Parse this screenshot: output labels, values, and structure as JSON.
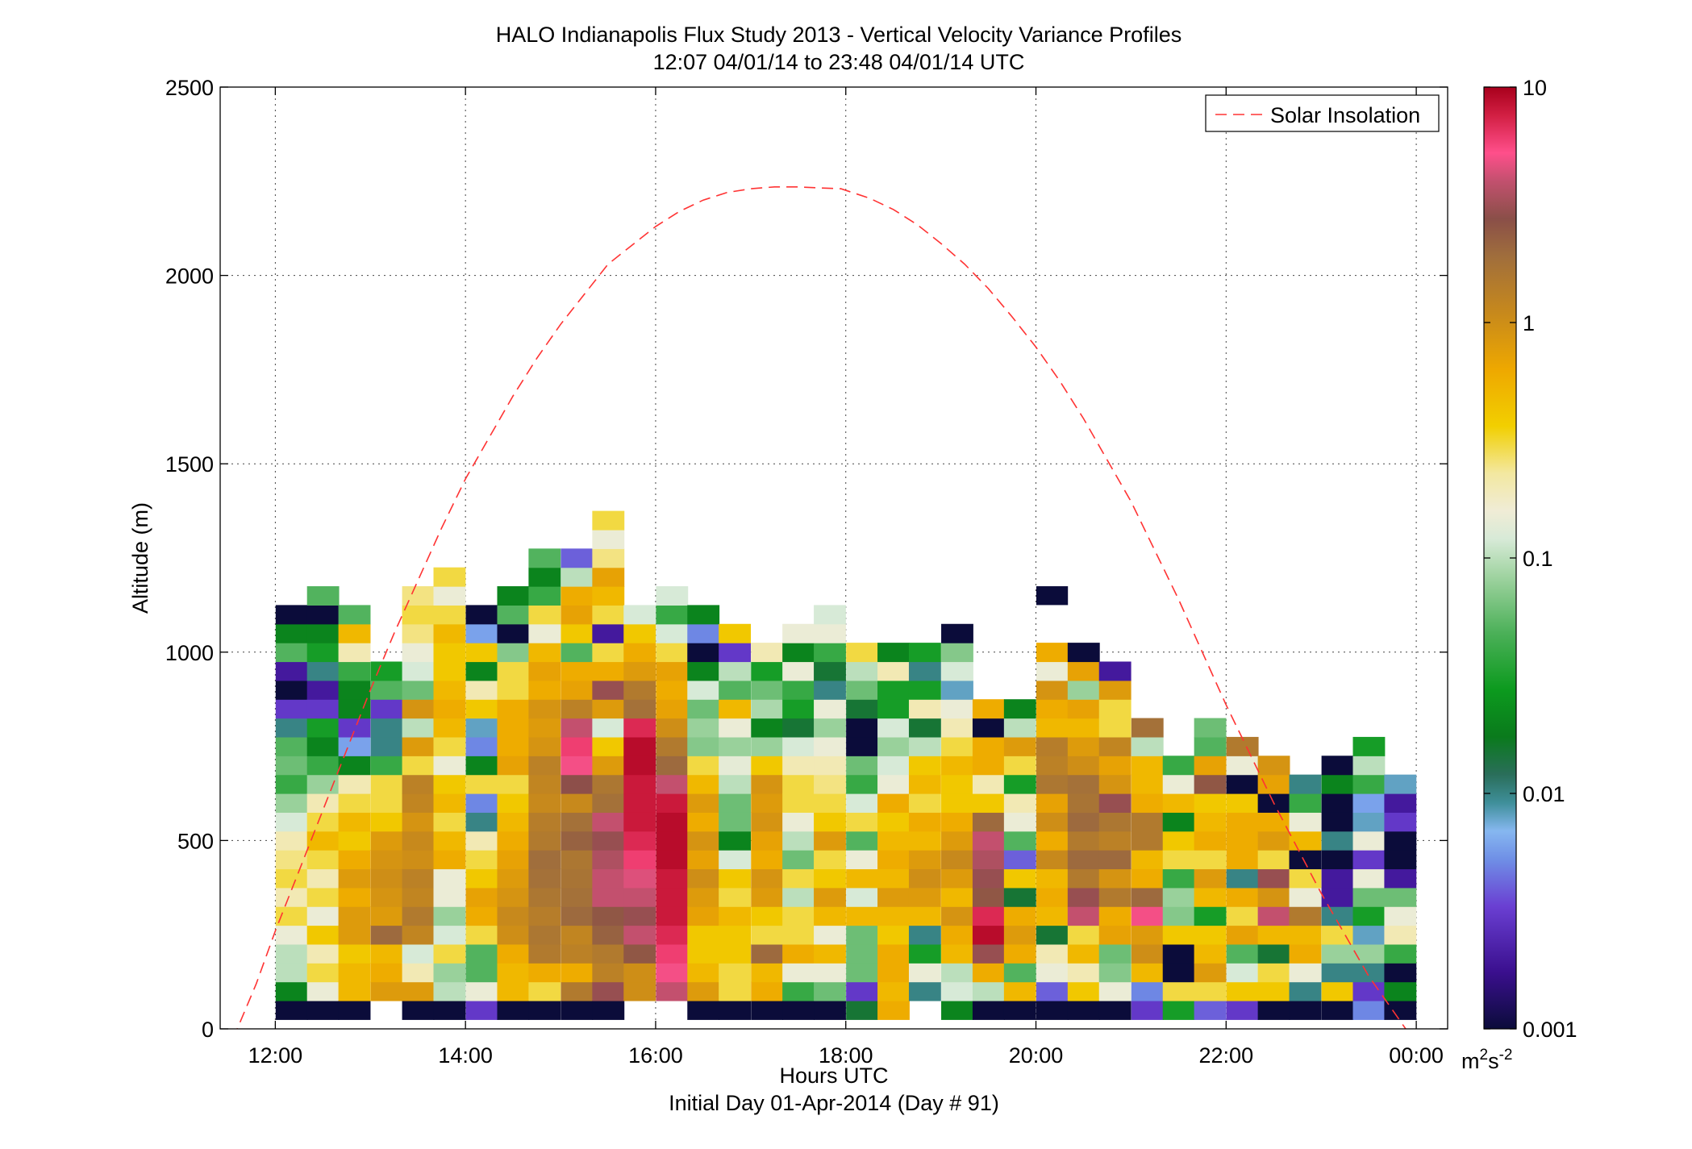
{
  "chart_data": {
    "type": "heatmap",
    "title": "HALO Indianapolis Flux Study 2013 - Vertical Velocity Variance Profiles",
    "subtitle": "12:07 04/01/14 to 23:48 04/01/14  UTC",
    "xlabel": "Hours UTC",
    "xlabel2": "Initial Day 01-Apr-2014 (Day # 91)",
    "ylabel": "Altitude (m)",
    "xlim": [
      11.42,
      24.33
    ],
    "ylim": [
      0,
      2500
    ],
    "x_ticks": [
      12,
      14,
      16,
      18,
      20,
      22,
      24
    ],
    "x_tick_labels": [
      "12:00",
      "14:00",
      "16:00",
      "18:00",
      "20:00",
      "22:00",
      "00:00"
    ],
    "y_ticks": [
      0,
      500,
      1000,
      1500,
      2000,
      2500
    ],
    "y_tick_labels": [
      "0",
      "500",
      "1000",
      "1500",
      "2000",
      "2500"
    ],
    "grid": true,
    "legend": {
      "placement": "top-right",
      "entries": [
        "Solar Insolation"
      ]
    },
    "line_color": "#ff3333",
    "colorbar": {
      "scale": "log",
      "range": [
        0.001,
        10
      ],
      "ticks": [
        0.001,
        0.01,
        0.1,
        1,
        10
      ],
      "tick_labels": [
        "0.001",
        "0.01",
        "0.1",
        "1",
        "10"
      ],
      "unit_base": "m",
      "unit_sup1": "2",
      "unit_mid": "s",
      "unit_sup2": "-2",
      "stops": [
        {
          "v": 0.0,
          "c": "#0b0c3a"
        },
        {
          "v": 0.06,
          "c": "#3a0f8e"
        },
        {
          "v": 0.13,
          "c": "#6a3fd2"
        },
        {
          "v": 0.18,
          "c": "#6f8fe6"
        },
        {
          "v": 0.21,
          "c": "#86b7f0"
        },
        {
          "v": 0.24,
          "c": "#3f8f9a"
        },
        {
          "v": 0.27,
          "c": "#2a6e5a"
        },
        {
          "v": 0.31,
          "c": "#0a7a1c"
        },
        {
          "v": 0.36,
          "c": "#0c9a1e"
        },
        {
          "v": 0.42,
          "c": "#4bb058"
        },
        {
          "v": 0.48,
          "c": "#9fd3a0"
        },
        {
          "v": 0.52,
          "c": "#d7ead7"
        },
        {
          "v": 0.55,
          "c": "#f0ecd6"
        },
        {
          "v": 0.59,
          "c": "#f3e8a0"
        },
        {
          "v": 0.64,
          "c": "#f2cf00"
        },
        {
          "v": 0.7,
          "c": "#eea800"
        },
        {
          "v": 0.76,
          "c": "#c7891c"
        },
        {
          "v": 0.82,
          "c": "#a06e3c"
        },
        {
          "v": 0.86,
          "c": "#8a4f48"
        },
        {
          "v": 0.9,
          "c": "#c2506e"
        },
        {
          "v": 0.93,
          "c": "#ff4f8b"
        },
        {
          "v": 0.97,
          "c": "#d21f43"
        },
        {
          "v": 1.0,
          "c": "#a8001c"
        }
      ]
    },
    "cell_height_m": 50,
    "cell_width_h": 0.333,
    "columns": [
      {
        "x": 12.17,
        "y0": 50,
        "v": [
          0.001,
          0.02,
          0.1,
          0.1,
          0.15,
          0.3,
          0.2,
          0.3,
          0.25,
          0.2,
          0.12,
          0.08,
          0.04,
          0.06,
          0.05,
          0.01,
          0.003,
          0.001,
          0.002,
          0.05,
          0.02,
          0.001
        ]
      },
      {
        "x": 12.5,
        "y0": 50,
        "v": [
          0.001,
          0.15,
          0.3,
          0.2,
          0.4,
          0.15,
          0.3,
          0.2,
          0.3,
          0.5,
          0.3,
          0.2,
          0.08,
          0.04,
          0.02,
          0.03,
          0.003,
          0.002,
          0.01,
          0.03,
          0.02,
          0.001,
          0.05
        ]
      },
      {
        "x": 12.83,
        "y0": 50,
        "v": [
          0.001,
          0.5,
          0.5,
          0.4,
          0.8,
          0.8,
          0.6,
          0.8,
          0.6,
          0.4,
          0.5,
          0.3,
          0.2,
          0.02,
          0.006,
          0.003,
          0.02,
          0.02,
          0.04,
          0.2,
          0.5,
          0.05
        ]
      },
      {
        "x": 13.17,
        "y0": 100,
        "v": [
          0.8,
          0.6,
          0.5,
          2.0,
          0.8,
          0.9,
          1.0,
          0.9,
          0.8,
          0.4,
          0.3,
          0.3,
          0.04,
          0.01,
          0.01,
          0.003,
          0.05,
          0.03
        ]
      },
      {
        "x": 13.5,
        "y0": 50,
        "v": [
          0.001,
          0.8,
          0.2,
          0.12,
          1.2,
          1.5,
          1.2,
          1.3,
          1.0,
          1.1,
          0.9,
          1.2,
          1.3,
          0.3,
          0.8,
          0.1,
          0.9,
          0.06,
          0.12,
          0.15,
          0.25,
          0.3,
          0.25
        ]
      },
      {
        "x": 13.83,
        "y0": 50,
        "v": [
          0.001,
          0.1,
          0.08,
          0.3,
          0.12,
          0.08,
          0.15,
          0.15,
          0.6,
          0.5,
          0.3,
          0.5,
          0.4,
          0.15,
          0.3,
          0.5,
          0.6,
          0.5,
          0.4,
          0.4,
          0.5,
          0.3,
          0.15,
          0.3
        ]
      },
      {
        "x": 14.17,
        "y0": 50,
        "v": [
          0.003,
          0.15,
          0.05,
          0.05,
          0.3,
          0.6,
          0.7,
          0.4,
          0.3,
          0.2,
          0.01,
          0.005,
          0.3,
          0.02,
          0.005,
          0.008,
          0.4,
          0.2,
          0.02,
          0.4,
          0.006,
          0.001
        ]
      },
      {
        "x": 14.5,
        "y0": 50,
        "v": [
          0.001,
          0.5,
          0.5,
          0.6,
          1.0,
          1.1,
          0.9,
          0.8,
          0.7,
          0.6,
          0.5,
          0.4,
          0.3,
          0.7,
          0.6,
          0.6,
          0.6,
          0.3,
          0.3,
          0.07,
          0.001,
          0.05,
          0.02
        ]
      },
      {
        "x": 14.83,
        "y0": 50,
        "v": [
          0.001,
          0.3,
          0.6,
          1.5,
          1.6,
          1.4,
          1.6,
          1.8,
          1.9,
          1.5,
          1.4,
          1.1,
          1.2,
          1.3,
          0.9,
          0.8,
          0.9,
          0.6,
          0.7,
          0.5,
          0.15,
          0.3,
          0.04,
          0.02,
          0.05
        ]
      },
      {
        "x": 15.17,
        "y0": 50,
        "v": [
          0.001,
          1.5,
          0.6,
          1.3,
          1.2,
          2.0,
          1.8,
          1.7,
          1.6,
          2.2,
          1.8,
          1.1,
          2.8,
          5.0,
          6.0,
          4.0,
          1.3,
          0.7,
          0.6,
          0.05,
          0.4,
          0.7,
          0.6,
          0.1,
          0.004
        ]
      },
      {
        "x": 15.5,
        "y0": 50,
        "v": [
          0.001,
          3.0,
          1.3,
          1.5,
          2.2,
          2.5,
          4.0,
          4.0,
          3.5,
          3.0,
          4.0,
          1.8,
          1.6,
          0.8,
          0.4,
          0.12,
          0.8,
          3.0,
          0.6,
          0.3,
          0.002,
          0.3,
          0.5,
          0.7,
          0.25,
          0.15,
          0.3
        ]
      },
      {
        "x": 15.83,
        "y0": 100,
        "v": [
          1.0,
          1.0,
          2.5,
          4.0,
          3.0,
          4.0,
          4.5,
          6.0,
          7.0,
          8.0,
          8.0,
          8.0,
          9.0,
          9.0,
          7.0,
          1.8,
          1.5,
          0.8,
          0.6,
          0.4,
          0.12
        ]
      },
      {
        "x": 16.17,
        "y0": 100,
        "v": [
          4.0,
          5.0,
          6.0,
          7.0,
          8.0,
          8.0,
          8.0,
          9.0,
          9.0,
          9.0,
          8.0,
          4.0,
          2.0,
          1.5,
          1.0,
          0.7,
          0.6,
          0.7,
          0.3,
          0.12,
          0.04,
          0.12
        ]
      },
      {
        "x": 16.5,
        "y0": 50,
        "v": [
          0.001,
          0.8,
          0.5,
          0.4,
          0.4,
          0.7,
          0.8,
          1.0,
          0.7,
          0.9,
          0.6,
          0.8,
          0.5,
          0.3,
          0.07,
          0.08,
          0.06,
          0.12,
          0.02,
          0.001,
          0.005,
          0.02
        ]
      },
      {
        "x": 16.83,
        "y0": 50,
        "v": [
          0.001,
          0.3,
          0.3,
          0.4,
          0.4,
          0.5,
          0.3,
          0.4,
          0.12,
          0.02,
          0.06,
          0.06,
          0.1,
          0.14,
          0.08,
          0.15,
          0.5,
          0.05,
          0.1,
          0.003,
          0.4
        ]
      },
      {
        "x": 17.17,
        "y0": 50,
        "v": [
          0.001,
          0.6,
          0.5,
          2.0,
          0.3,
          0.4,
          0.8,
          0.9,
          0.6,
          0.7,
          0.9,
          0.8,
          0.9,
          0.4,
          0.08,
          0.02,
          0.09,
          0.06,
          0.03,
          0.2
        ]
      },
      {
        "x": 17.5,
        "y0": 50,
        "v": [
          0.001,
          0.04,
          0.15,
          0.6,
          0.3,
          0.3,
          0.1,
          0.3,
          0.06,
          0.1,
          0.15,
          0.3,
          0.3,
          0.2,
          0.12,
          0.015,
          0.03,
          0.04,
          0.15,
          0.02,
          0.15
        ]
      },
      {
        "x": 17.83,
        "y0": 50,
        "v": [
          0.001,
          0.06,
          0.15,
          0.5,
          0.15,
          0.5,
          0.8,
          0.4,
          0.3,
          0.8,
          0.4,
          0.3,
          0.25,
          0.2,
          0.15,
          0.08,
          0.15,
          0.01,
          0.015,
          0.04,
          0.15,
          0.12
        ]
      },
      {
        "x": 18.17,
        "y0": 50,
        "v": [
          0.015,
          0.003,
          0.06,
          0.06,
          0.06,
          0.5,
          0.12,
          0.5,
          0.15,
          0.05,
          0.3,
          0.12,
          0.04,
          0.06,
          0.001,
          0.001,
          0.015,
          0.06,
          0.1,
          0.3
        ]
      },
      {
        "x": 18.5,
        "y0": 50,
        "v": [
          0.6,
          0.5,
          0.6,
          0.6,
          0.4,
          0.5,
          0.8,
          0.5,
          0.6,
          0.5,
          0.4,
          0.6,
          0.15,
          0.12,
          0.08,
          0.12,
          0.03,
          0.03,
          0.2,
          0.02
        ]
      },
      {
        "x": 18.83,
        "y0": 100,
        "v": [
          0.01,
          0.15,
          0.03,
          0.01,
          0.5,
          0.8,
          1.0,
          0.8,
          0.5,
          0.6,
          0.3,
          0.5,
          0.4,
          0.1,
          0.015,
          0.2,
          0.03,
          0.01,
          0.03
        ]
      },
      {
        "x": 19.17,
        "y0": 50,
        "v": [
          0.02,
          0.12,
          0.1,
          0.5,
          0.6,
          0.9,
          0.5,
          0.8,
          1.1,
          0.8,
          0.6,
          0.4,
          0.4,
          0.5,
          0.3,
          0.2,
          0.15,
          0.008,
          0.12,
          0.07,
          0.001
        ]
      },
      {
        "x": 19.5,
        "y0": 50,
        "v": [
          0.001,
          0.1,
          0.6,
          3.0,
          9.0,
          7.0,
          2.5,
          3.0,
          3.5,
          4.0,
          2.0,
          0.4,
          0.2,
          0.6,
          0.6,
          0.001,
          0.6
        ]
      },
      {
        "x": 19.83,
        "y0": 50,
        "v": [
          0.001,
          0.5,
          0.05,
          0.6,
          0.8,
          0.6,
          0.015,
          0.4,
          0.004,
          0.05,
          0.15,
          0.2,
          0.03,
          0.3,
          0.8,
          0.1,
          0.02
        ]
      },
      {
        "x": 20.17,
        "y0": 50,
        "v": [
          0.001,
          0.004,
          0.15,
          0.2,
          0.015,
          0.5,
          0.6,
          0.5,
          1.1,
          0.6,
          1.0,
          0.7,
          1.6,
          1.3,
          1.4,
          0.5,
          0.6,
          0.9,
          0.15,
          0.6
        ]
      },
      {
        "x": 20.5,
        "y0": 50,
        "v": [
          0.001,
          0.4,
          0.2,
          0.5,
          0.3,
          4.0,
          3.0,
          1.5,
          2.0,
          1.5,
          2.0,
          1.7,
          1.8,
          1.0,
          0.8,
          0.5,
          0.7,
          0.08,
          0.7,
          0.001
        ]
      },
      {
        "x": 20.83,
        "y0": 50,
        "v": [
          0.001,
          0.15,
          0.07,
          0.06,
          0.7,
          0.6,
          1.5,
          0.9,
          2.0,
          1.3,
          1.6,
          3.0,
          0.9,
          0.7,
          1.2,
          0.3,
          0.3,
          0.8,
          0.002
        ]
      },
      {
        "x": 21.17,
        "y0": 50,
        "v": [
          0.003,
          0.005,
          0.5,
          1.0,
          0.8,
          5.0,
          2.0,
          0.6,
          0.5,
          1.5,
          1.5,
          0.6,
          0.5,
          0.5,
          0.1,
          1.8
        ]
      },
      {
        "x": 21.5,
        "y0": 50,
        "v": [
          0.03,
          0.3,
          0.001,
          0.001,
          0.4,
          0.07,
          0.08,
          0.04,
          0.3,
          0.4,
          0.02,
          0.5,
          0.15,
          0.04
        ]
      },
      {
        "x": 21.83,
        "y0": 50,
        "v": [
          0.004,
          0.3,
          0.8,
          0.5,
          0.4,
          0.03,
          0.5,
          0.8,
          0.3,
          0.6,
          0.5,
          0.4,
          2.5,
          0.7,
          0.05,
          0.06
        ]
      },
      {
        "x": 22.17,
        "y0": 50,
        "v": [
          0.003,
          0.4,
          0.12,
          0.05,
          0.7,
          0.3,
          0.6,
          0.01,
          0.6,
          0.6,
          0.6,
          0.4,
          0.001,
          0.15,
          1.5
        ]
      },
      {
        "x": 22.5,
        "y0": 50,
        "v": [
          0.001,
          0.4,
          0.3,
          0.015,
          0.5,
          4.0,
          0.9,
          3.0,
          0.3,
          0.8,
          0.6,
          0.001,
          0.7,
          0.9
        ]
      },
      {
        "x": 22.83,
        "y0": 50,
        "v": [
          0.001,
          0.01,
          0.15,
          0.6,
          0.5,
          1.5,
          0.15,
          0.3,
          0.001,
          0.5,
          0.15,
          0.04,
          0.01
        ]
      },
      {
        "x": 23.17,
        "y0": 50,
        "v": [
          0.001,
          0.4,
          0.01,
          0.08,
          0.3,
          0.01,
          0.002,
          0.002,
          0.001,
          0.01,
          0.001,
          0.001,
          0.02,
          0.001
        ]
      },
      {
        "x": 23.5,
        "y0": 50,
        "v": [
          0.005,
          0.003,
          0.01,
          0.08,
          0.008,
          0.03,
          0.06,
          0.15,
          0.003,
          0.15,
          0.008,
          0.006,
          0.04,
          0.1,
          0.03
        ]
      },
      {
        "x": 23.83,
        "y0": 50,
        "v": [
          0.001,
          0.02,
          0.001,
          0.04,
          0.2,
          0.15,
          0.06,
          0.002,
          0.001,
          0.001,
          0.003,
          0.002,
          0.008
        ]
      }
    ],
    "outliers": [
      {
        "x": 20.17,
        "y": 1150,
        "v": 0.001
      }
    ],
    "series": [
      {
        "name": "Solar Insolation",
        "x": [
          11.42,
          11.6,
          11.8,
          12.0,
          12.25,
          12.5,
          12.75,
          13.0,
          13.25,
          13.5,
          13.75,
          14.0,
          14.25,
          14.5,
          14.75,
          15.0,
          15.25,
          15.5,
          15.75,
          16.0,
          16.25,
          16.5,
          16.75,
          17.0,
          17.25,
          17.5,
          17.75,
          17.95,
          18.25,
          18.5,
          18.75,
          19.0,
          19.25,
          19.5,
          19.75,
          20.0,
          20.25,
          20.5,
          20.75,
          21.0,
          21.25,
          21.5,
          21.75,
          22.0,
          22.25,
          22.5,
          22.75,
          23.0,
          23.25,
          23.5,
          23.75,
          24.0,
          24.1
        ],
        "y": [
          -60,
          0,
          120,
          260,
          420,
          580,
          740,
          900,
          1050,
          1190,
          1330,
          1460,
          1570,
          1680,
          1780,
          1870,
          1950,
          2030,
          2080,
          2130,
          2170,
          2200,
          2220,
          2230,
          2235,
          2235,
          2232,
          2230,
          2205,
          2175,
          2135,
          2085,
          2030,
          1965,
          1890,
          1810,
          1720,
          1620,
          1510,
          1400,
          1270,
          1140,
          1000,
          860,
          730,
          600,
          480,
          360,
          250,
          140,
          50,
          -40,
          -70
        ]
      }
    ]
  }
}
